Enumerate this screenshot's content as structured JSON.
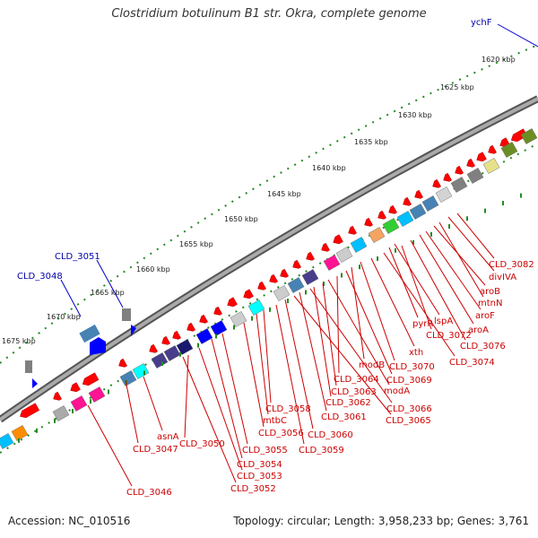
{
  "title": "Clostridium botulinum B1 str. Okra, complete genome",
  "footer": {
    "accession_label": "Accession:",
    "accession": "NC_010516",
    "topology_text": "Topology: circular; Length: 3,958,233 bp; Genes: 3,761"
  },
  "kbp_ticks": [
    "1620 kbp",
    "1625 kbp",
    "1630 kbp",
    "1635 kbp",
    "1640 kbp",
    "1645 kbp",
    "1650 kbp",
    "1655 kbp",
    "1660 kbp",
    "1665 kbp",
    "1670 kbp",
    "1675 kbp"
  ],
  "blue_labels": [
    "ychF",
    "CLD_3051",
    "CLD_3048"
  ],
  "red_labels": [
    "CLD_3082",
    "divIVA",
    "mtnN",
    "aroB",
    "aroF",
    "aroA",
    "CLD_3076",
    "lspA",
    "pyrR",
    "CLD_3072",
    "CLD_3074",
    "xth",
    "CLD_3070",
    "modB",
    "CLD_3069",
    "CLD_3064",
    "modA",
    "CLD_3063",
    "CLD_3062",
    "CLD_3066",
    "CLD_3061",
    "CLD_3065",
    "CLD_3058",
    "mtbC",
    "CLD_3060",
    "CLD_3056",
    "CLD_3059",
    "asnA",
    "CLD_3050",
    "CLD_3047",
    "CLD_3055",
    "CLD_3054",
    "CLD_3053",
    "CLD_3052",
    "CLD_3046"
  ],
  "colors": {
    "gene_red": "#ff0000",
    "blue_gene": "#0000ff",
    "backbone": "#888888",
    "gc_green": "#228b22",
    "label_red": "#cc0000",
    "label_blue": "#0000aa"
  }
}
